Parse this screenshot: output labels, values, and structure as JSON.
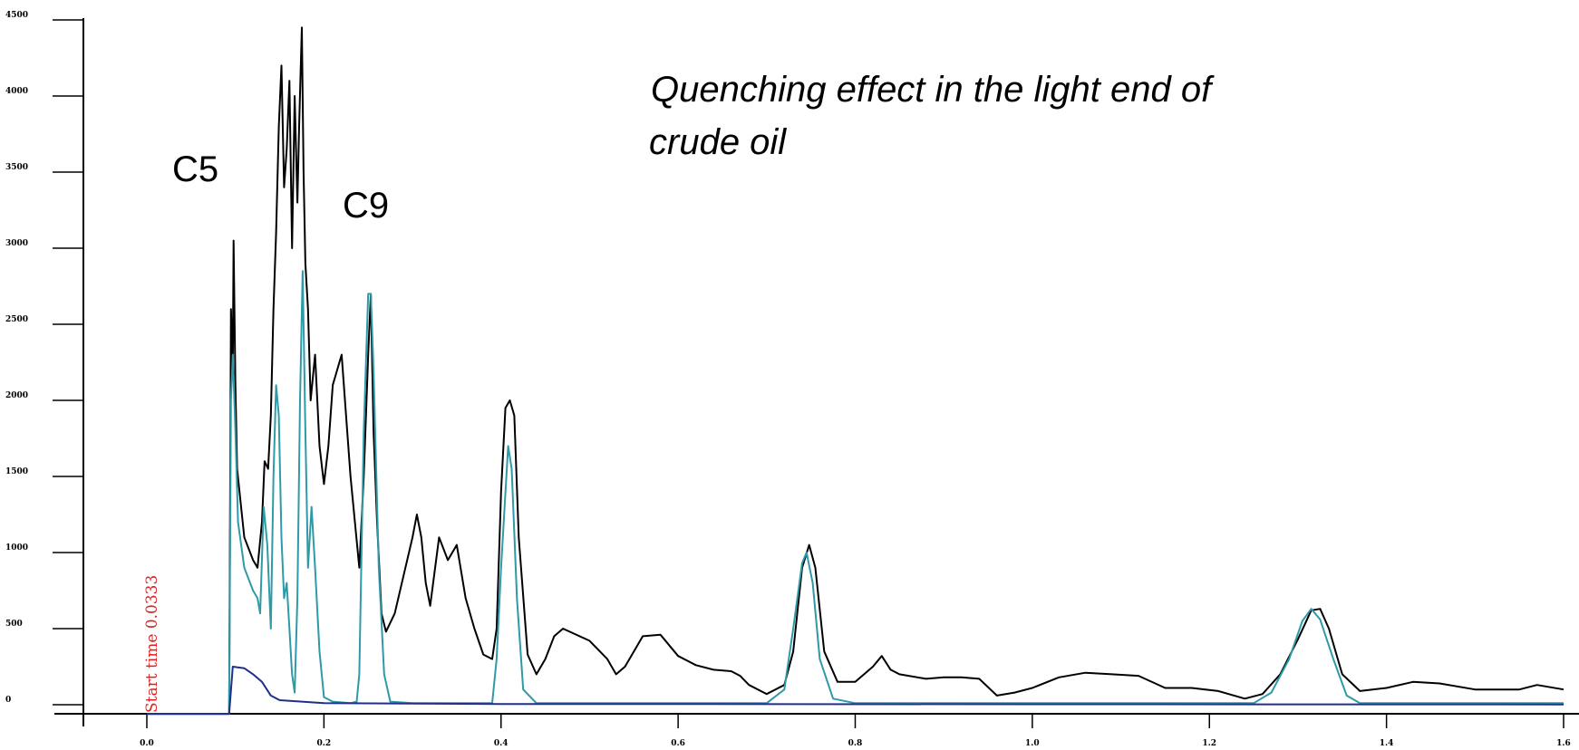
{
  "chart_data": {
    "type": "line",
    "title": "",
    "xlabel": "",
    "ylabel": "",
    "xlim": [
      0.0,
      1.6
    ],
    "ylim": [
      0,
      4500
    ],
    "x_ticks": [
      "0.0",
      "0.2",
      "0.4",
      "0.6",
      "0.8",
      "1.0",
      "1.2",
      "1.4",
      "1.6"
    ],
    "y_ticks": [
      "4500",
      "4000",
      "3500",
      "3000",
      "2500",
      "2000",
      "1500",
      "1000",
      "500",
      "0"
    ],
    "annotations": {
      "c5": "C5",
      "c9": "C9",
      "note_line1": "Quenching effect in the light end of",
      "note_line2": "crude oil",
      "start_time": "Start time 0.0333"
    },
    "grid": false,
    "legend": "none",
    "series": [
      {
        "color": "#000000",
        "points": [
          [
            0.0,
            -60
          ],
          [
            0.08,
            -60
          ],
          [
            0.093,
            -60
          ],
          [
            0.095,
            2600
          ],
          [
            0.097,
            2200
          ],
          [
            0.098,
            3050
          ],
          [
            0.1,
            2100
          ],
          [
            0.102,
            1550
          ],
          [
            0.11,
            1100
          ],
          [
            0.12,
            950
          ],
          [
            0.125,
            900
          ],
          [
            0.13,
            1200
          ],
          [
            0.133,
            1600
          ],
          [
            0.137,
            1550
          ],
          [
            0.14,
            1900
          ],
          [
            0.143,
            2600
          ],
          [
            0.146,
            3100
          ],
          [
            0.149,
            3800
          ],
          [
            0.152,
            4200
          ],
          [
            0.155,
            3400
          ],
          [
            0.158,
            3650
          ],
          [
            0.161,
            4100
          ],
          [
            0.164,
            3000
          ],
          [
            0.167,
            4000
          ],
          [
            0.17,
            3300
          ],
          [
            0.172,
            3800
          ],
          [
            0.175,
            4450
          ],
          [
            0.177,
            3500
          ],
          [
            0.179,
            2900
          ],
          [
            0.182,
            2600
          ],
          [
            0.185,
            2000
          ],
          [
            0.19,
            2300
          ],
          [
            0.195,
            1700
          ],
          [
            0.2,
            1450
          ],
          [
            0.205,
            1700
          ],
          [
            0.21,
            2100
          ],
          [
            0.215,
            2200
          ],
          [
            0.22,
            2300
          ],
          [
            0.225,
            1900
          ],
          [
            0.23,
            1500
          ],
          [
            0.24,
            900
          ],
          [
            0.245,
            1500
          ],
          [
            0.25,
            2300
          ],
          [
            0.253,
            2700
          ],
          [
            0.256,
            1800
          ],
          [
            0.26,
            1200
          ],
          [
            0.265,
            600
          ],
          [
            0.27,
            480
          ],
          [
            0.28,
            600
          ],
          [
            0.29,
            850
          ],
          [
            0.3,
            1100
          ],
          [
            0.305,
            1250
          ],
          [
            0.31,
            1100
          ],
          [
            0.315,
            800
          ],
          [
            0.32,
            650
          ],
          [
            0.33,
            1100
          ],
          [
            0.34,
            950
          ],
          [
            0.35,
            1050
          ],
          [
            0.36,
            700
          ],
          [
            0.37,
            500
          ],
          [
            0.38,
            330
          ],
          [
            0.39,
            300
          ],
          [
            0.395,
            500
          ],
          [
            0.4,
            1400
          ],
          [
            0.405,
            1950
          ],
          [
            0.41,
            2000
          ],
          [
            0.415,
            1900
          ],
          [
            0.42,
            1100
          ],
          [
            0.43,
            330
          ],
          [
            0.44,
            200
          ],
          [
            0.45,
            300
          ],
          [
            0.46,
            450
          ],
          [
            0.47,
            500
          ],
          [
            0.5,
            420
          ],
          [
            0.52,
            300
          ],
          [
            0.53,
            200
          ],
          [
            0.54,
            250
          ],
          [
            0.55,
            350
          ],
          [
            0.56,
            450
          ],
          [
            0.58,
            460
          ],
          [
            0.6,
            320
          ],
          [
            0.62,
            260
          ],
          [
            0.64,
            230
          ],
          [
            0.66,
            220
          ],
          [
            0.67,
            190
          ],
          [
            0.68,
            130
          ],
          [
            0.7,
            70
          ],
          [
            0.72,
            130
          ],
          [
            0.73,
            350
          ],
          [
            0.74,
            900
          ],
          [
            0.748,
            1050
          ],
          [
            0.755,
            900
          ],
          [
            0.765,
            350
          ],
          [
            0.78,
            150
          ],
          [
            0.8,
            150
          ],
          [
            0.82,
            250
          ],
          [
            0.83,
            320
          ],
          [
            0.84,
            230
          ],
          [
            0.85,
            200
          ],
          [
            0.88,
            170
          ],
          [
            0.9,
            180
          ],
          [
            0.92,
            180
          ],
          [
            0.94,
            170
          ],
          [
            0.96,
            60
          ],
          [
            0.98,
            80
          ],
          [
            1.0,
            110
          ],
          [
            1.03,
            180
          ],
          [
            1.06,
            210
          ],
          [
            1.09,
            200
          ],
          [
            1.12,
            190
          ],
          [
            1.15,
            110
          ],
          [
            1.18,
            110
          ],
          [
            1.21,
            90
          ],
          [
            1.24,
            40
          ],
          [
            1.26,
            70
          ],
          [
            1.28,
            200
          ],
          [
            1.3,
            430
          ],
          [
            1.315,
            620
          ],
          [
            1.325,
            630
          ],
          [
            1.335,
            500
          ],
          [
            1.35,
            200
          ],
          [
            1.37,
            90
          ],
          [
            1.4,
            110
          ],
          [
            1.43,
            150
          ],
          [
            1.46,
            140
          ],
          [
            1.5,
            100
          ],
          [
            1.55,
            100
          ],
          [
            1.57,
            130
          ],
          [
            1.6,
            100
          ]
        ]
      },
      {
        "color": "#2e9aa8",
        "points": [
          [
            0.0,
            -60
          ],
          [
            0.08,
            -60
          ],
          [
            0.093,
            -60
          ],
          [
            0.095,
            2000
          ],
          [
            0.097,
            2300
          ],
          [
            0.1,
            1800
          ],
          [
            0.103,
            1200
          ],
          [
            0.11,
            900
          ],
          [
            0.12,
            750
          ],
          [
            0.125,
            700
          ],
          [
            0.128,
            600
          ],
          [
            0.132,
            1300
          ],
          [
            0.136,
            1050
          ],
          [
            0.14,
            500
          ],
          [
            0.143,
            1500
          ],
          [
            0.146,
            2100
          ],
          [
            0.149,
            1900
          ],
          [
            0.152,
            1100
          ],
          [
            0.155,
            700
          ],
          [
            0.158,
            800
          ],
          [
            0.161,
            500
          ],
          [
            0.164,
            200
          ],
          [
            0.167,
            80
          ],
          [
            0.17,
            700
          ],
          [
            0.173,
            2000
          ],
          [
            0.176,
            2850
          ],
          [
            0.179,
            1800
          ],
          [
            0.182,
            900
          ],
          [
            0.186,
            1300
          ],
          [
            0.19,
            900
          ],
          [
            0.195,
            350
          ],
          [
            0.2,
            50
          ],
          [
            0.21,
            20
          ],
          [
            0.23,
            10
          ],
          [
            0.237,
            20
          ],
          [
            0.24,
            200
          ],
          [
            0.245,
            1800
          ],
          [
            0.25,
            2700
          ],
          [
            0.253,
            2700
          ],
          [
            0.256,
            2200
          ],
          [
            0.262,
            900
          ],
          [
            0.268,
            200
          ],
          [
            0.275,
            20
          ],
          [
            0.3,
            10
          ],
          [
            0.36,
            10
          ],
          [
            0.39,
            10
          ],
          [
            0.395,
            300
          ],
          [
            0.4,
            900
          ],
          [
            0.408,
            1700
          ],
          [
            0.412,
            1550
          ],
          [
            0.418,
            700
          ],
          [
            0.425,
            100
          ],
          [
            0.44,
            10
          ],
          [
            0.7,
            10
          ],
          [
            0.72,
            100
          ],
          [
            0.73,
            500
          ],
          [
            0.74,
            930
          ],
          [
            0.745,
            1000
          ],
          [
            0.752,
            800
          ],
          [
            0.76,
            300
          ],
          [
            0.775,
            40
          ],
          [
            0.8,
            10
          ],
          [
            1.25,
            10
          ],
          [
            1.27,
            80
          ],
          [
            1.29,
            300
          ],
          [
            1.305,
            550
          ],
          [
            1.315,
            630
          ],
          [
            1.325,
            560
          ],
          [
            1.34,
            300
          ],
          [
            1.355,
            60
          ],
          [
            1.37,
            10
          ],
          [
            1.6,
            10
          ]
        ]
      },
      {
        "color": "#1f2f8a",
        "points": [
          [
            0.0,
            -60
          ],
          [
            0.08,
            -60
          ],
          [
            0.093,
            -60
          ],
          [
            0.097,
            250
          ],
          [
            0.11,
            240
          ],
          [
            0.12,
            200
          ],
          [
            0.13,
            150
          ],
          [
            0.14,
            60
          ],
          [
            0.15,
            30
          ],
          [
            0.2,
            10
          ],
          [
            0.4,
            5
          ],
          [
            1.0,
            3
          ],
          [
            1.6,
            2
          ]
        ]
      }
    ]
  }
}
